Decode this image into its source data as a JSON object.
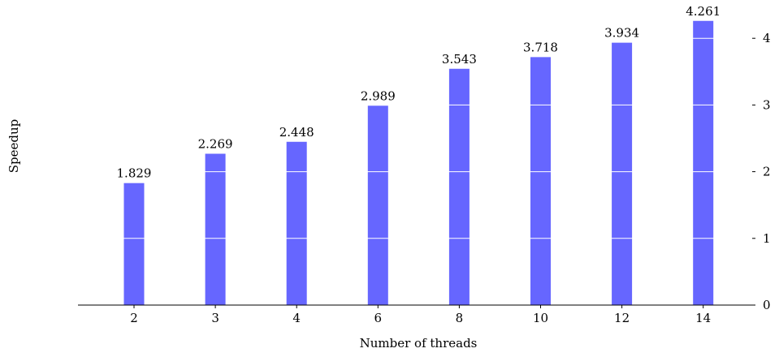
{
  "chart_data": {
    "type": "bar",
    "categories": [
      "2",
      "3",
      "4",
      "6",
      "8",
      "10",
      "12",
      "14"
    ],
    "series": [
      {
        "values": [
          1.829,
          2.269,
          2.448,
          2.989,
          3.543,
          3.718,
          3.934,
          4.261
        ],
        "color": "#6666ff"
      }
    ],
    "data_labels": [
      "1.829",
      "2.269",
      "2.448",
      "2.989",
      "3.543",
      "3.718",
      "3.934",
      "4.261"
    ],
    "title": "",
    "xlabel": "Number of threads",
    "ylabel": "Speedup",
    "ylim": [
      0,
      4.3
    ],
    "yticks": [
      0,
      1,
      2,
      3,
      4
    ],
    "ytick_labels": [
      "0",
      "1",
      "2",
      "3",
      "4"
    ],
    "y_axis_side": "right",
    "grid": "horizontal white lines inside bars",
    "legend": "none"
  }
}
